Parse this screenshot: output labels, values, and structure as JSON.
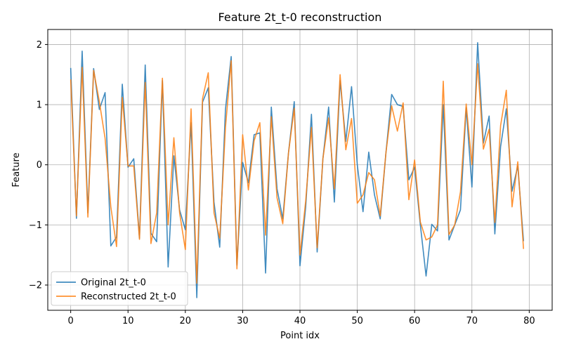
{
  "chart_data": {
    "type": "line",
    "title": "Feature 2t_t-0 reconstruction",
    "xlabel": "Point idx",
    "ylabel": "Feature",
    "xlim": [
      -4,
      84
    ],
    "ylim": [
      -2.42,
      2.25
    ],
    "xticks": [
      0,
      10,
      20,
      30,
      40,
      50,
      60,
      70,
      80
    ],
    "yticks": [
      -2,
      -1,
      0,
      1,
      2
    ],
    "grid": true,
    "legend_position": "lower-left",
    "x": [
      0,
      1,
      2,
      3,
      4,
      5,
      6,
      7,
      8,
      9,
      10,
      11,
      12,
      13,
      14,
      15,
      16,
      17,
      18,
      19,
      20,
      21,
      22,
      23,
      24,
      25,
      26,
      27,
      28,
      29,
      30,
      31,
      32,
      33,
      34,
      35,
      36,
      37,
      38,
      39,
      40,
      41,
      42,
      43,
      44,
      45,
      46,
      47,
      48,
      49,
      50,
      51,
      52,
      53,
      54,
      55,
      56,
      57,
      58,
      59,
      60,
      61,
      62,
      63,
      64,
      65,
      66,
      67,
      68,
      69,
      70,
      71,
      72,
      73,
      74,
      75,
      76,
      77,
      78,
      79
    ],
    "series": [
      {
        "name": "Original 2t_t-0",
        "color": "#1f77b4",
        "values": [
          1.61,
          -0.89,
          1.89,
          -0.8,
          1.6,
          0.92,
          1.2,
          -1.35,
          -1.2,
          1.34,
          -0.04,
          0.1,
          -1.22,
          1.66,
          -1.14,
          -1.28,
          1.4,
          -1.7,
          0.15,
          -0.75,
          -1.08,
          0.7,
          -2.21,
          1.04,
          1.28,
          -0.62,
          -1.37,
          0.92,
          1.8,
          -1.67,
          0.04,
          -0.3,
          0.5,
          0.53,
          -1.8,
          0.96,
          -0.4,
          -0.9,
          0.2,
          1.05,
          -1.68,
          -0.7,
          0.84,
          -1.45,
          0.1,
          0.96,
          -0.62,
          1.4,
          0.39,
          1.3,
          0.0,
          -0.78,
          0.21,
          -0.5,
          -0.9,
          0.2,
          1.17,
          1.0,
          0.97,
          -0.25,
          -0.04,
          -1.0,
          -1.85,
          -0.99,
          -1.1,
          1.0,
          -1.25,
          -1.0,
          -0.75,
          0.95,
          -0.37,
          2.03,
          0.36,
          0.81,
          -1.15,
          0.3,
          0.93,
          -0.44,
          -0.02,
          -1.27
        ]
      },
      {
        "name": "Reconstructed 2t_t-0",
        "color": "#ff7f0e",
        "values": [
          1.42,
          -0.85,
          1.62,
          -0.87,
          1.57,
          1.05,
          0.44,
          -0.7,
          -1.36,
          1.12,
          -0.02,
          -0.02,
          -1.24,
          1.37,
          -1.31,
          -0.8,
          1.44,
          -1.0,
          0.45,
          -0.8,
          -1.41,
          0.93,
          -1.97,
          1.1,
          1.53,
          -0.8,
          -1.22,
          0.62,
          1.73,
          -1.73,
          0.5,
          -0.42,
          0.4,
          0.7,
          -1.17,
          0.8,
          -0.55,
          -0.98,
          0.2,
          0.94,
          -1.5,
          -0.6,
          0.62,
          -1.38,
          0.1,
          0.78,
          -0.4,
          1.5,
          0.25,
          0.77,
          -0.64,
          -0.5,
          -0.13,
          -0.25,
          -0.85,
          0.2,
          0.98,
          0.56,
          1.03,
          -0.58,
          0.08,
          -0.95,
          -1.25,
          -1.2,
          -1.0,
          1.39,
          -1.16,
          -1.0,
          -0.45,
          1.01,
          0.0,
          1.68,
          0.26,
          0.59,
          -0.96,
          0.65,
          1.24,
          -0.7,
          0.05,
          -1.4
        ]
      }
    ]
  }
}
